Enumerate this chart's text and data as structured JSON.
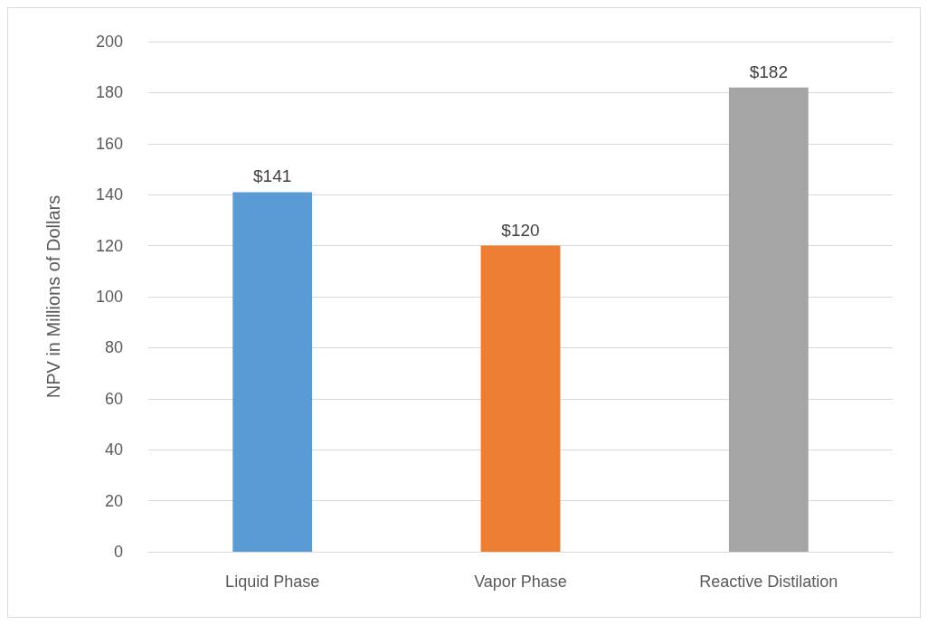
{
  "chart_data": {
    "type": "bar",
    "ylabel": "NPV in Millions of Dollars",
    "categories": [
      "Liquid Phase",
      "Vapor Phase",
      "Reactive Distilation"
    ],
    "values": [
      141,
      120,
      182
    ],
    "colors": [
      "#5b9bd5",
      "#ed7d31",
      "#a5a5a5"
    ],
    "value_labels": [
      "$141",
      "$120",
      "$182"
    ],
    "ylim": [
      0,
      200
    ],
    "yticks": [
      0,
      20,
      40,
      60,
      80,
      100,
      120,
      140,
      160,
      180,
      200
    ],
    "grid": "y"
  }
}
